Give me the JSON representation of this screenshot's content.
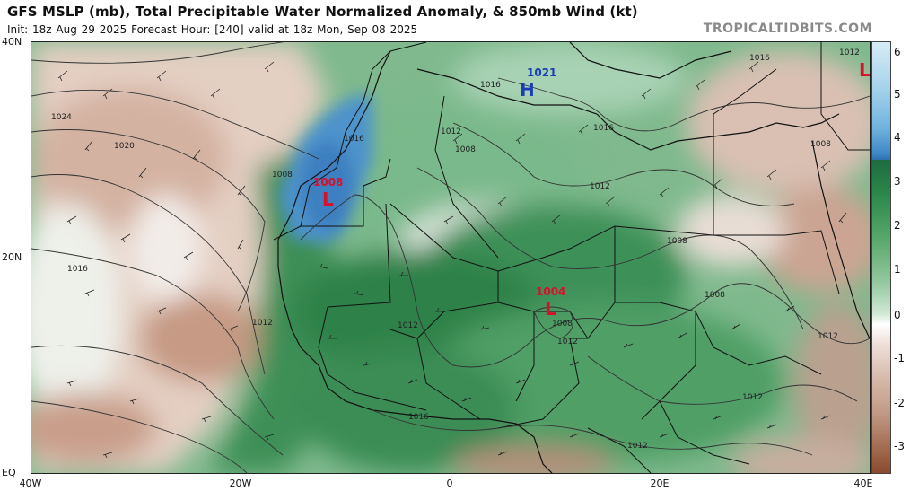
{
  "header": {
    "title": "GFS MSLP (mb), Total Precipitable Water Normalized Anomaly, & 850mb Wind (kt)",
    "subtitle": "Init: 18z Aug 29 2025   Forecast Hour: [240]   valid at 18z Mon, Sep 08 2025",
    "watermark": "TROPICALTIDBITS.COM"
  },
  "axes": {
    "lat_labels": [
      "40N",
      "20N",
      "EQ"
    ],
    "lon_labels": [
      "40W",
      "20W",
      "0",
      "20E",
      "40E"
    ]
  },
  "pressure_systems": [
    {
      "type": "H",
      "value": "1021",
      "color": "#1a3fb5"
    },
    {
      "type": "L",
      "value": "1008",
      "color": "#d8102a"
    },
    {
      "type": "L",
      "value": "1004",
      "color": "#d8102a"
    },
    {
      "type": "L",
      "value": "",
      "color": "#d8102a"
    }
  ],
  "isobar_labels": [
    "1024",
    "1020",
    "1016",
    "1016",
    "1012",
    "1008",
    "1016",
    "1016",
    "1016",
    "1012",
    "1008",
    "1008",
    "1012",
    "1008",
    "1012",
    "1012",
    "1012",
    "1016",
    "1012",
    "1008",
    "1008",
    "1012",
    "1012"
  ],
  "colorbar": {
    "ticks": [
      "6",
      "5",
      "4",
      "3",
      "2",
      "1",
      "0",
      "-1",
      "-2",
      "-3"
    ],
    "colors": {
      "positive_blue": "#3e86c6",
      "positive_green": "#2e8a4d",
      "neutral": "#ffffff",
      "negative_brown": "#a36c50"
    }
  },
  "colors": {
    "high_label": "#1a3fb5",
    "low_label": "#d8102a",
    "isobar": "#333333"
  }
}
